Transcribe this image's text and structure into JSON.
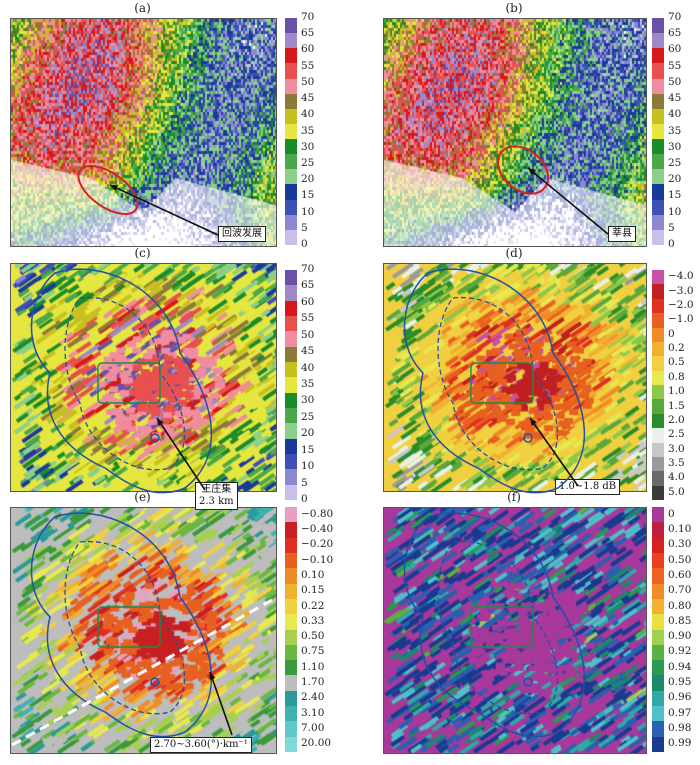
{
  "chart_data": [
    {
      "type": "heatmap",
      "panel": "(a)",
      "annotation": "回波发展",
      "colorbar": {
        "ticks": [
          "0",
          "5",
          "10",
          "15",
          "20",
          "25",
          "30",
          "35",
          "40",
          "45",
          "50",
          "55",
          "60",
          "65",
          "70"
        ],
        "colors": [
          "#c8c0e8",
          "#8c88d0",
          "#3c50b8",
          "#1a3a9a",
          "#8ad08a",
          "#4aa84a",
          "#1a8c2a",
          "#e6e640",
          "#c8c020",
          "#8c7a3a",
          "#f08ca0",
          "#e85050",
          "#d81818",
          "#a088c8",
          "#6a50a8"
        ]
      }
    },
    {
      "type": "heatmap",
      "panel": "(b)",
      "annotation": "莘县",
      "colorbar": {
        "ticks": [
          "0",
          "5",
          "10",
          "15",
          "20",
          "25",
          "30",
          "35",
          "40",
          "45",
          "50",
          "55",
          "60",
          "65",
          "70"
        ],
        "colors": [
          "#c8c0e8",
          "#8c88d0",
          "#3c50b8",
          "#1a3a9a",
          "#8ad08a",
          "#4aa84a",
          "#1a8c2a",
          "#e6e640",
          "#c8c020",
          "#8c7a3a",
          "#f08ca0",
          "#e85050",
          "#d81818",
          "#a088c8",
          "#6a50a8"
        ]
      }
    },
    {
      "type": "heatmap",
      "panel": "(c)",
      "annotation": [
        "王庄集",
        "2.3 km"
      ],
      "colorbar": {
        "ticks": [
          "0",
          "5",
          "10",
          "15",
          "20",
          "25",
          "30",
          "35",
          "40",
          "45",
          "50",
          "55",
          "60",
          "65",
          "70"
        ],
        "colors": [
          "#c8c0e8",
          "#8c88d0",
          "#3c50b8",
          "#1a3a9a",
          "#8ad08a",
          "#4aa84a",
          "#1a8c2a",
          "#e6e640",
          "#c8c020",
          "#8c7a3a",
          "#f08ca0",
          "#e85050",
          "#d81818",
          "#a088c8",
          "#6a50a8"
        ]
      }
    },
    {
      "type": "heatmap",
      "panel": "(d)",
      "annotation": "1.0~1.8 dB",
      "colorbar": {
        "ticks": [
          "5.0",
          "4.0",
          "3.5",
          "3.0",
          "2.5",
          "2.0",
          "1.5",
          "1.0",
          "0.8",
          "0.5",
          "0.2",
          "0",
          "−1.0",
          "−2.0",
          "−3.0",
          "−4.0"
        ],
        "colors": [
          "#c850a8",
          "#c02020",
          "#e03020",
          "#e86020",
          "#f08c28",
          "#f0b030",
          "#f0d040",
          "#e8e850",
          "#8cc84a",
          "#5aa83a",
          "#2a8c2a",
          "#e8f0e8",
          "#c8c8c8",
          "#9a9a9a",
          "#6a6a6a",
          "#3a3a3a"
        ]
      }
    },
    {
      "type": "heatmap",
      "panel": "(e)",
      "annotation": "2.70~3.60(°)·km⁻¹",
      "colorbar": {
        "ticks": [
          "20.00",
          "7.00",
          "3.10",
          "2.40",
          "1.70",
          "1.10",
          "0.75",
          "0.50",
          "0.33",
          "0.22",
          "0.15",
          "0.10",
          "−0.10",
          "−0.20",
          "−0.40",
          "−0.80"
        ],
        "colors": [
          "#e8a0c0",
          "#c82020",
          "#e03020",
          "#e86020",
          "#f08c28",
          "#f0b030",
          "#f0d040",
          "#e8e850",
          "#a8d050",
          "#6ab840",
          "#3a9a3a",
          "#bdbdbd",
          "#2a9a9a",
          "#40b0b0",
          "#60c8c8",
          "#80d8d8"
        ]
      }
    },
    {
      "type": "heatmap",
      "panel": "(f)",
      "colorbar": {
        "ticks": [
          "0.99",
          "0.98",
          "0.97",
          "0.96",
          "0.95",
          "0.94",
          "0.92",
          "0.90",
          "0.85",
          "0.80",
          "0.70",
          "0.60",
          "0.50",
          "0.30",
          "0.10",
          "0"
        ],
        "colors": [
          "#a8389a",
          "#c02040",
          "#d82020",
          "#e84020",
          "#f06020",
          "#f08c28",
          "#f0b030",
          "#e8e040",
          "#a0d050",
          "#5ab040",
          "#2a9a50",
          "#1a8a6a",
          "#30a8a8",
          "#50c0c8",
          "#2a60b0",
          "#1a3a90"
        ]
      }
    }
  ]
}
